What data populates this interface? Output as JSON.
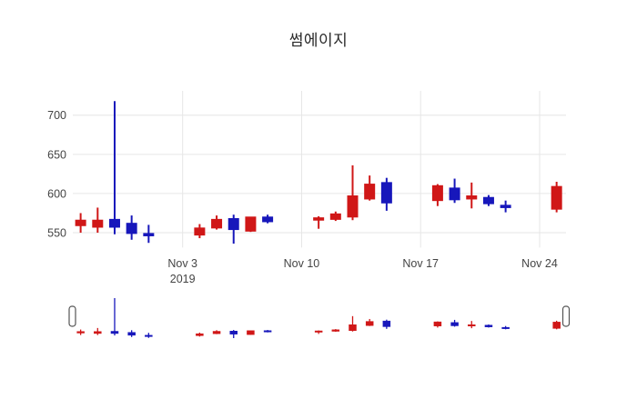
{
  "chart": {
    "background_color": "#ffffff",
    "grid_color": "#e6e6e6",
    "tick_color": "#444444"
  },
  "chart_data": {
    "type": "candlestick",
    "title": "썸에이지",
    "increasing_color": "#d01717",
    "decreasing_color": "#1717bb",
    "x": [
      "2019-10-28",
      "2019-10-29",
      "2019-10-30",
      "2019-10-31",
      "2019-11-01",
      "2019-11-04",
      "2019-11-05",
      "2019-11-06",
      "2019-11-07",
      "2019-11-08",
      "2019-11-11",
      "2019-11-12",
      "2019-11-13",
      "2019-11-14",
      "2019-11-15",
      "2019-11-18",
      "2019-11-19",
      "2019-11-20",
      "2019-11-21",
      "2019-11-22",
      "2019-11-25"
    ],
    "open": [
      559,
      557,
      567,
      562,
      549,
      547,
      556,
      568,
      552,
      570,
      566,
      567,
      570,
      593,
      614,
      591,
      607,
      593,
      595,
      585,
      580
    ],
    "high": [
      575,
      582,
      718,
      572,
      560,
      561,
      572,
      573,
      570,
      573,
      571,
      577,
      636,
      623,
      620,
      612,
      619,
      614,
      598,
      591,
      615
    ],
    "low": [
      550,
      550,
      548,
      541,
      537,
      543,
      554,
      536,
      551,
      562,
      555,
      565,
      566,
      591,
      578,
      584,
      588,
      581,
      584,
      576,
      576
    ],
    "close": [
      566,
      566,
      557,
      549,
      546,
      556,
      567,
      554,
      570,
      564,
      569,
      574,
      597,
      612,
      588,
      610,
      592,
      597,
      587,
      582,
      609
    ],
    "ylim": [
      531,
      731
    ],
    "yticks": [
      {
        "value": 550,
        "label": "550"
      },
      {
        "value": 600,
        "label": "600"
      },
      {
        "value": 650,
        "label": "650"
      },
      {
        "value": 700,
        "label": "700"
      }
    ],
    "xticks": [
      {
        "date": "2019-11-03",
        "label": "Nov 3",
        "sublabel": "2019"
      },
      {
        "date": "2019-11-10",
        "label": "Nov 10",
        "sublabel": ""
      },
      {
        "date": "2019-11-17",
        "label": "Nov 17",
        "sublabel": ""
      },
      {
        "date": "2019-11-24",
        "label": "Nov 24",
        "sublabel": ""
      }
    ],
    "grid": true,
    "legend": "none",
    "rangeslider": true
  }
}
